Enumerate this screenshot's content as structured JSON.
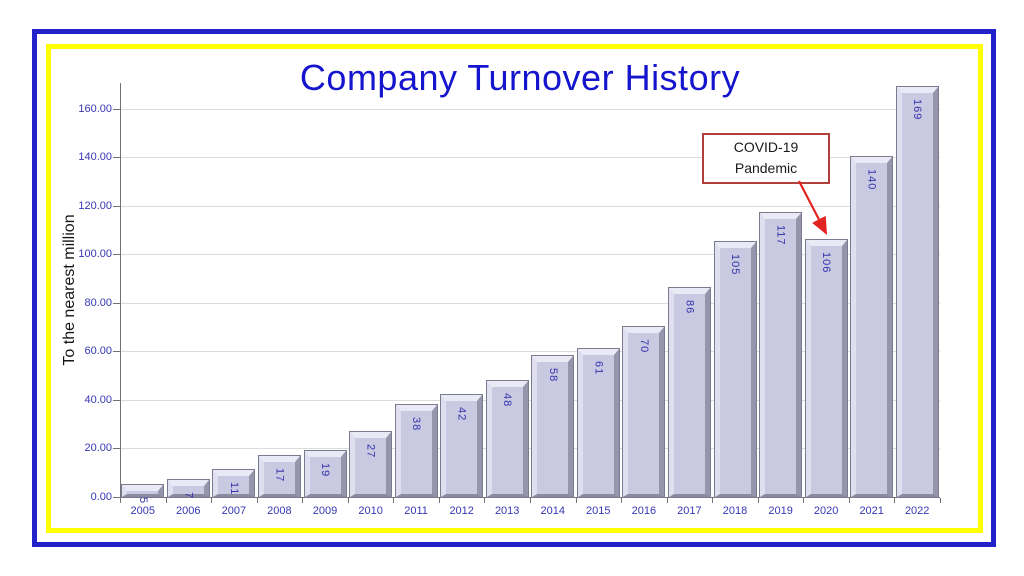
{
  "colors": {
    "outer_border": "#2222CB",
    "inner_border": "#FFFF00",
    "title_text": "#1515CD",
    "axis_tick_text": "#3737B4",
    "bar_fill": "#C9C9E1",
    "bar_highlight": "#EAEAF6",
    "bar_shadow": "#9595AB",
    "bar_value_text": "#3434AF",
    "gridline": "#DCDCDC",
    "axis_line": "#737373",
    "annotation_border": "#AF403C",
    "annotation_text": "#1a1a1a",
    "arrow": "#E32222"
  },
  "chart_data": {
    "type": "bar",
    "title": "Company Turnover History",
    "xlabel": "",
    "ylabel": "To the nearest million",
    "categories": [
      "2005",
      "2006",
      "2007",
      "2008",
      "2009",
      "2010",
      "2011",
      "2012",
      "2013",
      "2014",
      "2015",
      "2016",
      "2017",
      "2018",
      "2019",
      "2020",
      "2021",
      "2022"
    ],
    "values": [
      5,
      7,
      11,
      17,
      19,
      27,
      38,
      42,
      48,
      58,
      61,
      70,
      86,
      105,
      117,
      106,
      140,
      169
    ],
    "bar_labels": [
      "5",
      "7",
      "11",
      "17",
      "19",
      "27",
      "38",
      "42",
      "48",
      "58",
      "61",
      "70",
      "86",
      "105",
      "117",
      "106",
      "140",
      "169"
    ],
    "y_ticks": [
      "0.00",
      "20.00",
      "40.00",
      "60.00",
      "80.00",
      "100.00",
      "120.00",
      "140.00",
      "160.00"
    ],
    "ylim": [
      0,
      170
    ],
    "grid": true,
    "legend": "none",
    "annotation": {
      "line1": "COVID-19",
      "line2": "Pandemic",
      "target_category": "2020",
      "target_value": 106
    }
  }
}
